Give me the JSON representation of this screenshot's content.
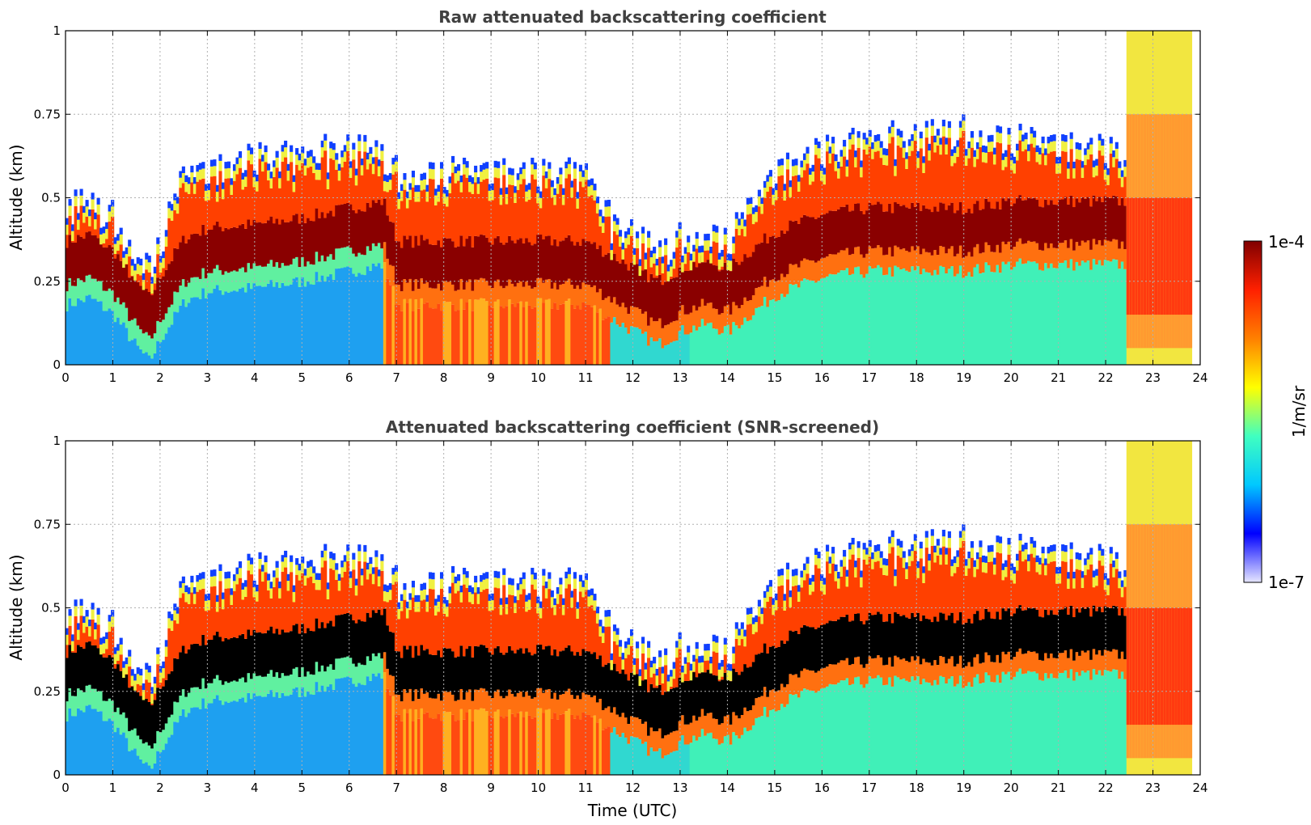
{
  "chart_data": [
    {
      "type": "heatmap",
      "title": "Raw attenuated backscattering coefficient",
      "xlabel": "",
      "ylabel": "Altitude (km)",
      "xlim": [
        0,
        24
      ],
      "ylim": [
        0,
        1
      ],
      "xticks": [
        "0",
        "1",
        "2",
        "3",
        "4",
        "5",
        "6",
        "7",
        "8",
        "9",
        "10",
        "11",
        "12",
        "13",
        "14",
        "15",
        "16",
        "17",
        "18",
        "19",
        "20",
        "21",
        "22",
        "23",
        "24"
      ],
      "yticks": [
        "0",
        "0.25",
        "0.5",
        "0.75",
        "1"
      ],
      "grid": true,
      "colormap": "jet",
      "layer_profile": {
        "time_utc": [
          0,
          0.5,
          1,
          1.5,
          1.75,
          2,
          2.5,
          3,
          4,
          5,
          6,
          6.7,
          7,
          8,
          9,
          10,
          11,
          11.5,
          12,
          12.5,
          13,
          13.5,
          14,
          15,
          16,
          17,
          18,
          19,
          20,
          21,
          22,
          22.4
        ],
        "layer_center_km": [
          0.3,
          0.32,
          0.27,
          0.17,
          0.13,
          0.2,
          0.31,
          0.34,
          0.35,
          0.37,
          0.4,
          0.42,
          0.3,
          0.3,
          0.3,
          0.3,
          0.3,
          0.26,
          0.22,
          0.18,
          0.22,
          0.24,
          0.22,
          0.33,
          0.38,
          0.4,
          0.4,
          0.4,
          0.42,
          0.42,
          0.42,
          0.42
        ],
        "layer_top_km": [
          0.45,
          0.45,
          0.42,
          0.3,
          0.27,
          0.35,
          0.55,
          0.55,
          0.6,
          0.6,
          0.62,
          0.6,
          0.55,
          0.55,
          0.55,
          0.55,
          0.55,
          0.4,
          0.36,
          0.3,
          0.36,
          0.37,
          0.35,
          0.55,
          0.62,
          0.65,
          0.65,
          0.68,
          0.65,
          0.63,
          0.62,
          0.6
        ]
      }
    },
    {
      "type": "heatmap",
      "title": "Attenuated backscattering coefficient (SNR-screened)",
      "xlabel": "Time (UTC)",
      "ylabel": "Altitude (km)",
      "xlim": [
        0,
        24
      ],
      "ylim": [
        0,
        1
      ],
      "xticks": [
        "0",
        "1",
        "2",
        "3",
        "4",
        "5",
        "6",
        "7",
        "8",
        "9",
        "10",
        "11",
        "12",
        "13",
        "14",
        "15",
        "16",
        "17",
        "18",
        "19",
        "20",
        "21",
        "22",
        "23",
        "24"
      ],
      "yticks": [
        "0",
        "0.25",
        "0.5",
        "0.75",
        "1"
      ],
      "grid": true,
      "colormap": "jet",
      "screened": true
    }
  ],
  "colorbar": {
    "label": "1/m/sr",
    "max_label": "1e-4",
    "min_label": "1e-7",
    "stops": [
      "#e6e6ff",
      "#0000ff",
      "#00c8ff",
      "#40ffc0",
      "#ffff00",
      "#ff8000",
      "#ff2000",
      "#800000"
    ]
  }
}
